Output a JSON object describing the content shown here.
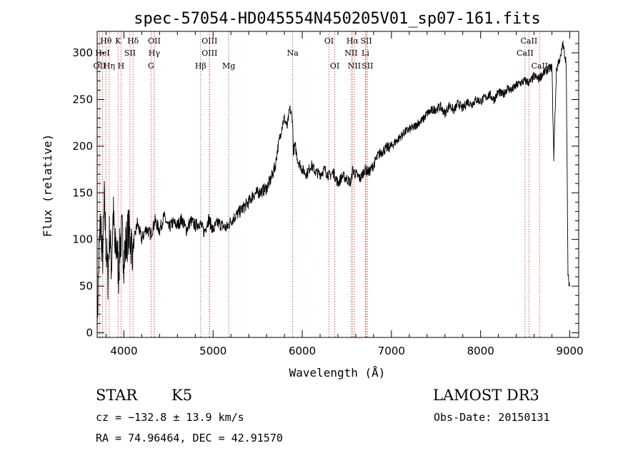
{
  "chart_data": {
    "type": "line",
    "title": "spec-57054-HD045554N450205V01_sp07-161.fits",
    "xlabel": "Wavelength (Å)",
    "ylabel": "Flux (relative)",
    "xlim": [
      3700,
      9100
    ],
    "ylim": [
      -5,
      323
    ],
    "xticks": [
      4000,
      5000,
      6000,
      7000,
      8000,
      9000
    ],
    "yticks": [
      0,
      50,
      100,
      150,
      200,
      250,
      300
    ],
    "series": [
      {
        "x": [
          3700,
          3720,
          3740,
          3760,
          3780,
          3800,
          3820,
          3840,
          3860,
          3880,
          3900,
          3920,
          3940,
          3960,
          3980,
          4000,
          4050,
          4100,
          4150,
          4200,
          4250,
          4300,
          4350,
          4400,
          4450,
          4500,
          4550,
          4600,
          4650,
          4700,
          4750,
          4800,
          4850,
          4900,
          4950,
          5000,
          5050,
          5100,
          5150,
          5200,
          5250,
          5300,
          5350,
          5400,
          5450,
          5500,
          5550,
          5600,
          5650,
          5700,
          5720,
          5750,
          5780,
          5800,
          5830,
          5860,
          5890,
          5900,
          5920,
          5950,
          6000,
          6050,
          6100,
          6150,
          6200,
          6250,
          6300,
          6350,
          6400,
          6450,
          6500,
          6550,
          6560,
          6600,
          6650,
          6700,
          6750,
          6800,
          6850,
          6900,
          6950,
          7000,
          7050,
          7100,
          7150,
          7200,
          7250,
          7300,
          7350,
          7400,
          7450,
          7500,
          7550,
          7600,
          7650,
          7700,
          7750,
          7800,
          7850,
          7900,
          7950,
          8000,
          8050,
          8100,
          8150,
          8200,
          8250,
          8300,
          8350,
          8400,
          8450,
          8500,
          8550,
          8600,
          8650,
          8700,
          8750,
          8800,
          8820,
          8850,
          8870,
          8900,
          8920,
          8940,
          8960,
          8980,
          9000
        ],
        "y": [
          5,
          85,
          120,
          75,
          140,
          90,
          60,
          110,
          70,
          130,
          85,
          95,
          65,
          100,
          105,
          80,
          110,
          90,
          118,
          100,
          112,
          105,
          120,
          110,
          125,
          112,
          118,
          115,
          122,
          110,
          120,
          115,
          118,
          108,
          122,
          110,
          118,
          115,
          112,
          120,
          125,
          130,
          135,
          140,
          148,
          150,
          152,
          155,
          165,
          180,
          195,
          210,
          225,
          230,
          220,
          240,
          230,
          195,
          200,
          185,
          175,
          170,
          180,
          172,
          170,
          175,
          168,
          172,
          160,
          168,
          165,
          160,
          175,
          170,
          165,
          175,
          172,
          180,
          190,
          195,
          198,
          200,
          205,
          210,
          215,
          218,
          220,
          225,
          228,
          235,
          238,
          240,
          242,
          235,
          244,
          238,
          246,
          240,
          248,
          245,
          250,
          248,
          252,
          255,
          250,
          258,
          255,
          262,
          260,
          265,
          268,
          270,
          268,
          275,
          272,
          278,
          282,
          285,
          188,
          280,
          290,
          295,
          310,
          300,
          290,
          60,
          50
        ]
      }
    ],
    "line_markers": [
      {
        "label": "Hθ",
        "wavelength": 3798,
        "row": 0
      },
      {
        "label": "K",
        "wavelength": 3934,
        "row": 0
      },
      {
        "label": "Hδ",
        "wavelength": 4102,
        "row": 0
      },
      {
        "label": "OII",
        "wavelength": 4341,
        "row": 0
      },
      {
        "label": "OIII",
        "wavelength": 4960,
        "row": 0
      },
      {
        "label": "OI",
        "wavelength": 6300,
        "row": 0
      },
      {
        "label": "Hα",
        "wavelength": 6563,
        "row": 0
      },
      {
        "label": "SII",
        "wavelength": 6717,
        "row": 0
      },
      {
        "label": "CaII",
        "wavelength": 8542,
        "row": 0
      },
      {
        "label": "HeI",
        "wavelength": 3760,
        "row": 1
      },
      {
        "label": "SII",
        "wavelength": 4068,
        "row": 1
      },
      {
        "label": "Hγ",
        "wavelength": 4340,
        "row": 1
      },
      {
        "label": "OIII",
        "wavelength": 4960,
        "row": 1
      },
      {
        "label": "Na",
        "wavelength": 5893,
        "row": 1
      },
      {
        "label": "NII",
        "wavelength": 6548,
        "row": 1
      },
      {
        "label": "Li",
        "wavelength": 6708,
        "row": 1
      },
      {
        "label": "CaII",
        "wavelength": 8498,
        "row": 1
      },
      {
        "label": "OII",
        "wavelength": 3727,
        "row": 2
      },
      {
        "label": "Hη",
        "wavelength": 3835,
        "row": 2
      },
      {
        "label": "H",
        "wavelength": 3968,
        "row": 2
      },
      {
        "label": "G",
        "wavelength": 4304,
        "row": 2
      },
      {
        "label": "Hβ",
        "wavelength": 4861,
        "row": 2
      },
      {
        "label": "Mg",
        "wavelength": 5175,
        "row": 2
      },
      {
        "label": "OI",
        "wavelength": 6364,
        "row": 2
      },
      {
        "label": "NII",
        "wavelength": 6584,
        "row": 2
      },
      {
        "label": "SII",
        "wavelength": 6731,
        "row": 2
      },
      {
        "label": "CaII",
        "wavelength": 8662,
        "row": 2
      }
    ],
    "grid": false,
    "legend": "none"
  },
  "info": {
    "object_class": "STAR",
    "subclass": "K5",
    "survey": "LAMOST DR3",
    "cz": "cz = −132.8 ± 13.9 km/s",
    "obs_date": "Obs-Date: 20150131",
    "coords": "RA =  74.96464, DEC =  42.91570"
  },
  "colors": {
    "spectrum": "#000000",
    "line_marker": "#c0392b",
    "axes": "#000000"
  }
}
